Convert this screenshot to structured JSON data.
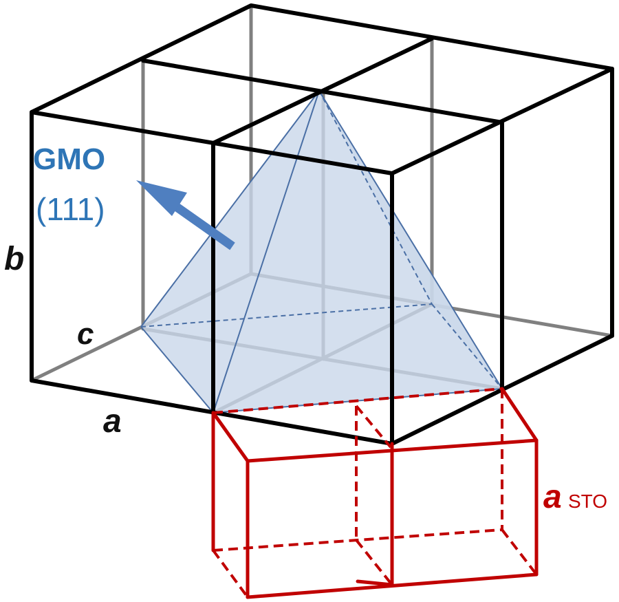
{
  "labels": {
    "gmo_title": "GMO",
    "gmo_plane": "(111)",
    "axis_a": "a",
    "axis_b": "b",
    "axis_c": "c",
    "sto_symbol": "a",
    "sto_subscript": "STO"
  },
  "colors": {
    "frame": "#000000",
    "hidden_edges": "#808080",
    "plane_fill": "#c9d7ea",
    "plane_edges": "#4a6fa5",
    "arrow": "#4f7fc0",
    "gmo_text": "#2e75b6",
    "sto": "#c00000"
  },
  "icons": {
    "normal_arrow": "arrow-icon"
  }
}
